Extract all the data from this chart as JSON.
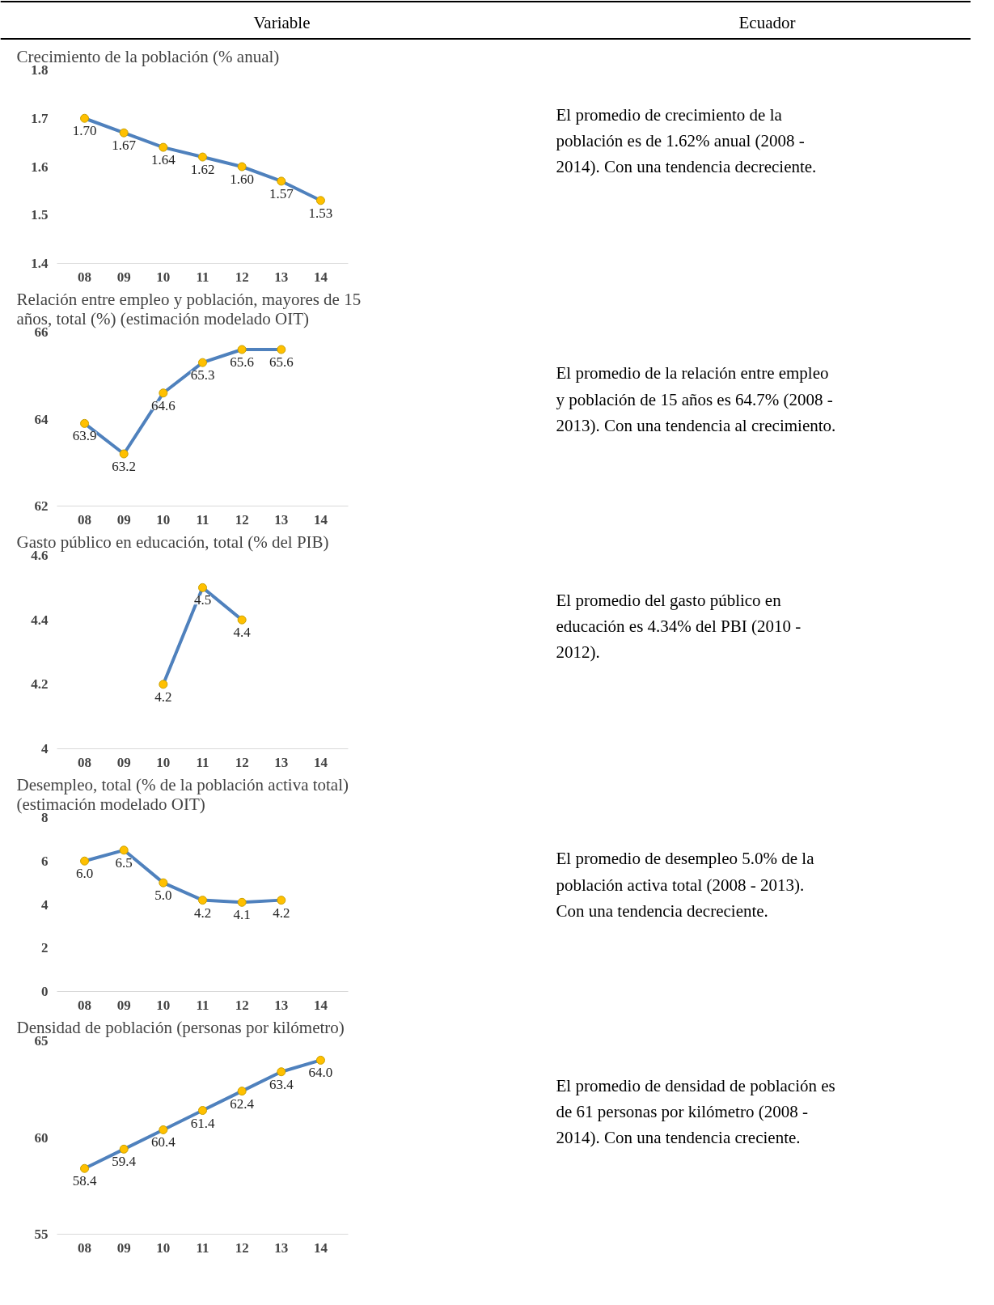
{
  "chart_data": [
    {
      "type": "other",
      "annotations": [
        "Variable",
        "Ecuador"
      ]
    },
    {
      "type": "line",
      "title": "Crecimiento de la población (% anual)",
      "categories": [
        "08",
        "09",
        "10",
        "11",
        "12",
        "13",
        "14"
      ],
      "series": [
        {
          "color": "#4f81bd",
          "values": [
            1.7,
            1.67,
            1.64,
            1.62,
            1.6,
            1.57,
            1.53
          ],
          "value_labels": [
            "1.70",
            "1.67",
            "1.64",
            "1.62",
            "1.60",
            "1.57",
            "1.53"
          ]
        }
      ],
      "ylim": [
        1.4,
        1.8
      ],
      "yticks": [
        1.4,
        1.5,
        1.6,
        1.7,
        1.8
      ],
      "marker": "circle",
      "line_style": "solid",
      "grid": false
    },
    {
      "type": "other",
      "annotations": [
        "El promedio de crecimiento de la población es de 1.62% anual (2008 - 2014). Con una tendencia decreciente."
      ]
    },
    {
      "type": "line",
      "title": "Relación entre empleo y población, mayores de 15 años, total (%) (estimación modelado OIT)",
      "categories": [
        "08",
        "09",
        "10",
        "11",
        "12",
        "13",
        "14"
      ],
      "series": [
        {
          "color": "#4f81bd",
          "values": [
            63.9,
            63.2,
            64.6,
            65.3,
            65.6,
            65.6,
            null
          ],
          "value_labels": [
            "63.9",
            "63.2",
            "64.6",
            "65.3",
            "65.6",
            "65.6",
            null
          ]
        }
      ],
      "ylim": [
        62,
        66
      ],
      "yticks": [
        62,
        64,
        66
      ],
      "marker": "circle",
      "line_style": "solid",
      "grid": false
    },
    {
      "type": "other",
      "annotations": [
        "El promedio de la relación entre empleo y población de 15 años es 64.7% (2008 - 2013). Con una tendencia al crecimiento."
      ]
    },
    {
      "type": "line",
      "title": "Gasto público en educación, total (% del PIB)",
      "categories": [
        "08",
        "09",
        "10",
        "11",
        "12",
        "13",
        "14"
      ],
      "series": [
        {
          "color": "#4f81bd",
          "values": [
            null,
            null,
            4.2,
            4.5,
            4.4,
            null,
            null
          ],
          "value_labels": [
            null,
            null,
            "4.2",
            "4.5",
            "4.4",
            null,
            null
          ]
        }
      ],
      "ylim": [
        4,
        4.6
      ],
      "yticks": [
        4,
        4.2,
        4.4,
        4.6
      ],
      "marker": "circle",
      "line_style": "solid",
      "grid": false
    },
    {
      "type": "other",
      "annotations": [
        "El promedio del gasto público en educación es 4.34% del PBI (2010 - 2012)."
      ]
    },
    {
      "type": "line",
      "title": "Desempleo, total (% de la población activa total) (estimación modelado OIT)",
      "categories": [
        "08",
        "09",
        "10",
        "11",
        "12",
        "13",
        "14"
      ],
      "series": [
        {
          "color": "#4f81bd",
          "values": [
            6.0,
            6.5,
            5.0,
            4.2,
            4.1,
            4.2,
            null
          ],
          "value_labels": [
            "6.0",
            "6.5",
            "5.0",
            "4.2",
            "4.1",
            "4.2",
            null
          ]
        }
      ],
      "ylim": [
        0,
        8
      ],
      "yticks": [
        0,
        2,
        4,
        6,
        8
      ],
      "marker": "circle",
      "line_style": "solid",
      "grid": false
    },
    {
      "type": "other",
      "annotations": [
        "El promedio de desempleo 5.0% de la población activa total (2008 - 2013). Con una tendencia decreciente."
      ]
    },
    {
      "type": "line",
      "title": "Densidad de población (personas por kilómetro)",
      "categories": [
        "08",
        "09",
        "10",
        "11",
        "12",
        "13",
        "14"
      ],
      "series": [
        {
          "color": "#4f81bd",
          "values": [
            58.4,
            59.4,
            60.4,
            61.4,
            62.4,
            63.4,
            64.0
          ],
          "value_labels": [
            "58.4",
            "59.4",
            "60.4",
            "61.4",
            "62.4",
            "63.4",
            "64.0"
          ]
        }
      ],
      "ylim": [
        55,
        65
      ],
      "yticks": [
        55,
        60,
        65
      ],
      "marker": "circle",
      "line_style": "solid",
      "grid": false
    },
    {
      "type": "other",
      "annotations": [
        "El promedio de densidad de población es de 61 personas por kilómetro   (2008 - 2014). Con una tendencia creciente."
      ]
    }
  ]
}
